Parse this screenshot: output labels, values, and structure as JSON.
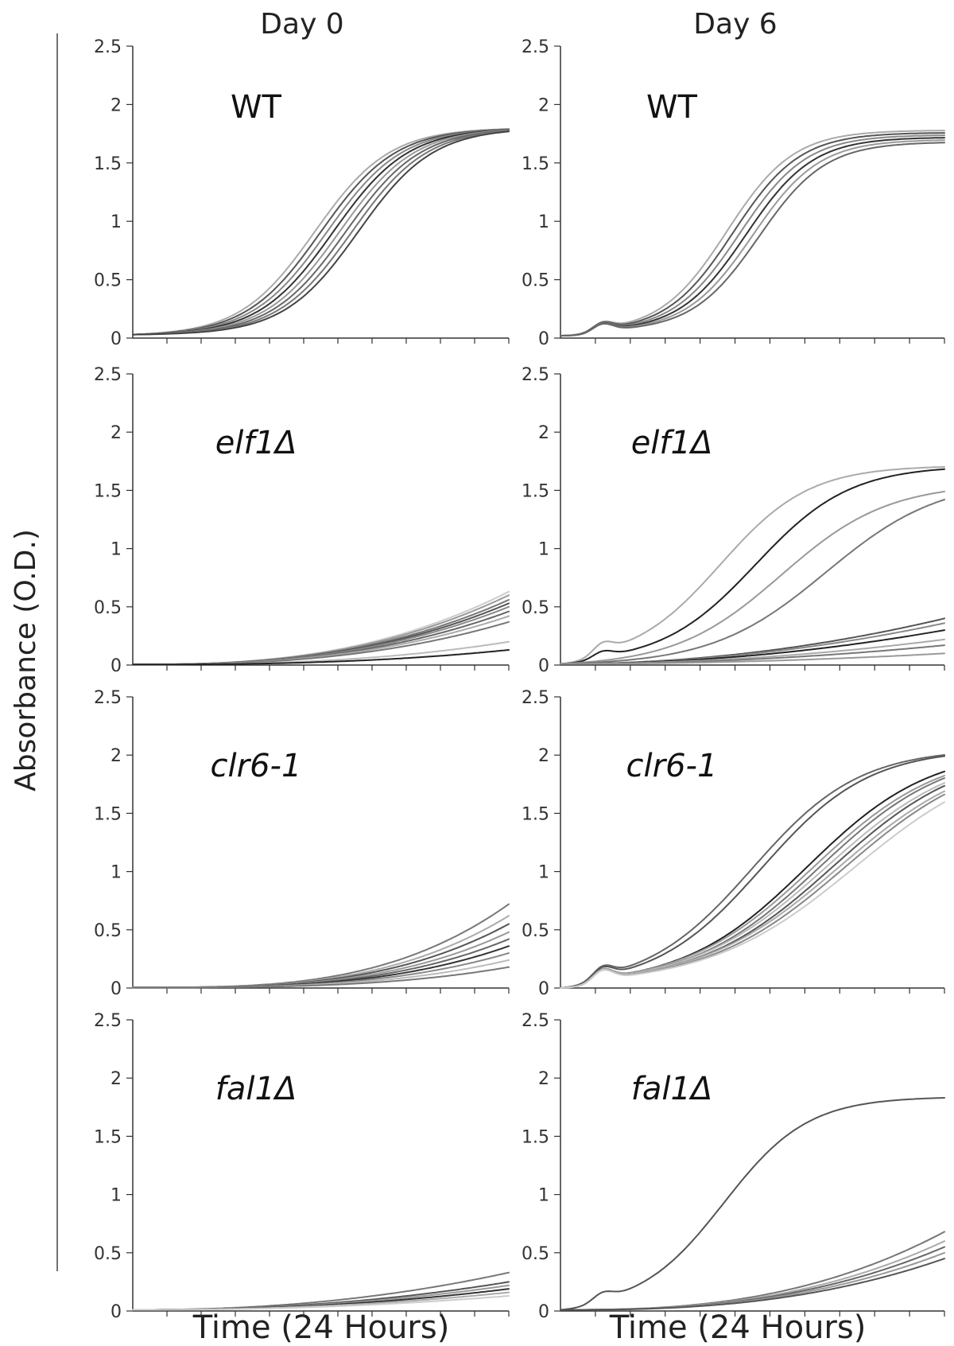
{
  "figure": {
    "column_titles": [
      "Day 0",
      "Day 6"
    ],
    "ylabel": "Absorbance (O.D.)",
    "xlabel": "Time (24 Hours)"
  },
  "chart_data": [
    {
      "type": "line",
      "panel": "WT Day 0",
      "label": "WT",
      "italic": false,
      "row": 0,
      "col": 0,
      "ylim": [
        0,
        2.5
      ],
      "yticks": [
        "0",
        "0.5",
        "1",
        "1.5",
        "2",
        "2.5"
      ],
      "x_tick_count": 11,
      "x_range": [
        0,
        24
      ],
      "xlabel": "Time (24 Hours)",
      "series_style": "sigmoid",
      "baseline": 0.03,
      "series": [
        {
          "plateau": 1.8,
          "mid": 11.6,
          "k": 0.42,
          "color": "#aaaaaa"
        },
        {
          "plateau": 1.8,
          "mid": 12.0,
          "k": 0.42,
          "color": "#555555"
        },
        {
          "plateau": 1.8,
          "mid": 12.4,
          "k": 0.42,
          "color": "#888888"
        },
        {
          "plateau": 1.8,
          "mid": 12.8,
          "k": 0.42,
          "color": "#333333"
        },
        {
          "plateau": 1.8,
          "mid": 13.2,
          "k": 0.42,
          "color": "#999999"
        },
        {
          "plateau": 1.8,
          "mid": 13.6,
          "k": 0.42,
          "color": "#666666"
        },
        {
          "plateau": 1.8,
          "mid": 14.0,
          "k": 0.42,
          "color": "#777777"
        },
        {
          "plateau": 1.8,
          "mid": 14.4,
          "k": 0.42,
          "color": "#444444"
        }
      ]
    },
    {
      "type": "line",
      "panel": "WT Day 6",
      "label": "WT",
      "italic": false,
      "row": 0,
      "col": 1,
      "ylim": [
        0,
        2.5
      ],
      "yticks": [
        "0",
        "0.5",
        "1",
        "1.5",
        "2",
        "2.5"
      ],
      "x_tick_count": 11,
      "x_range": [
        0,
        24
      ],
      "xlabel": "Time (24 Hours)",
      "series_style": "sigmoid",
      "baseline": 0.02,
      "bump": 0.1,
      "series": [
        {
          "plateau": 1.74,
          "mid": 10.4,
          "k": 0.48,
          "color": "#aaaaaa"
        },
        {
          "plateau": 1.72,
          "mid": 10.8,
          "k": 0.48,
          "color": "#555555"
        },
        {
          "plateau": 1.7,
          "mid": 11.2,
          "k": 0.48,
          "color": "#888888"
        },
        {
          "plateau": 1.68,
          "mid": 11.6,
          "k": 0.48,
          "color": "#333333"
        },
        {
          "plateau": 1.66,
          "mid": 12.0,
          "k": 0.48,
          "color": "#999999"
        },
        {
          "plateau": 1.64,
          "mid": 12.4,
          "k": 0.48,
          "color": "#666666"
        }
      ]
    },
    {
      "type": "line",
      "panel": "elf1Δ Day 0",
      "label": "elf1Δ",
      "italic": true,
      "row": 1,
      "col": 0,
      "ylim": [
        0,
        2.5
      ],
      "yticks": [
        "0",
        "0.5",
        "1",
        "1.5",
        "2",
        "2.5"
      ],
      "x_tick_count": 11,
      "x_range": [
        0,
        24
      ],
      "xlabel": "Time (24 Hours)",
      "series_style": "power",
      "exponent": 2.6,
      "series": [
        {
          "end": 0.63,
          "color": "#cccccc"
        },
        {
          "end": 0.6,
          "color": "#999999"
        },
        {
          "end": 0.56,
          "color": "#777777"
        },
        {
          "end": 0.53,
          "color": "#555555"
        },
        {
          "end": 0.5,
          "color": "#888888"
        },
        {
          "end": 0.46,
          "color": "#666666"
        },
        {
          "end": 0.42,
          "color": "#aaaaaa"
        },
        {
          "end": 0.37,
          "color": "#777777"
        },
        {
          "end": 0.2,
          "color": "#bbbbbb"
        },
        {
          "end": 0.13,
          "color": "#222222"
        }
      ]
    },
    {
      "type": "line",
      "panel": "elf1Δ Day 6",
      "label": "elf1Δ",
      "italic": true,
      "row": 1,
      "col": 1,
      "ylim": [
        0,
        2.5
      ],
      "yticks": [
        "0",
        "0.5",
        "1",
        "1.5",
        "2",
        "2.5"
      ],
      "x_tick_count": 11,
      "x_range": [
        0,
        24
      ],
      "xlabel": "Time (24 Hours)",
      "series_style": "mixed",
      "baseline": 0.01,
      "series": [
        {
          "kind": "sigmoid",
          "plateau": 1.66,
          "mid": 10.0,
          "k": 0.36,
          "bump": 0.13,
          "color": "#aaaaaa"
        },
        {
          "kind": "sigmoid",
          "plateau": 1.68,
          "mid": 12.2,
          "k": 0.34,
          "bump": 0.08,
          "color": "#222222"
        },
        {
          "kind": "sigmoid",
          "plateau": 1.56,
          "mid": 13.8,
          "k": 0.3,
          "color": "#999999"
        },
        {
          "kind": "sigmoid",
          "plateau": 1.6,
          "mid": 16.6,
          "k": 0.28,
          "color": "#777777"
        },
        {
          "kind": "power",
          "end": 0.4,
          "exponent": 2.0,
          "color": "#555555"
        },
        {
          "kind": "power",
          "end": 0.36,
          "exponent": 2.0,
          "color": "#888888"
        },
        {
          "kind": "power",
          "end": 0.3,
          "exponent": 2.0,
          "color": "#222222"
        },
        {
          "kind": "power",
          "end": 0.22,
          "exponent": 2.0,
          "color": "#aaaaaa"
        },
        {
          "kind": "power",
          "end": 0.17,
          "exponent": 2.0,
          "color": "#777777"
        },
        {
          "kind": "power",
          "end": 0.1,
          "exponent": 2.0,
          "color": "#999999"
        }
      ]
    },
    {
      "type": "line",
      "panel": "clr6-1 Day 0",
      "label": "clr6-1",
      "italic": true,
      "row": 2,
      "col": 0,
      "ylim": [
        0,
        2.5
      ],
      "yticks": [
        "0",
        "0.5",
        "1",
        "1.5",
        "2",
        "2.5"
      ],
      "x_tick_count": 11,
      "x_range": [
        0,
        24
      ],
      "xlabel": "Time (24 Hours)",
      "series_style": "power",
      "exponent": 3.2,
      "series": [
        {
          "end": 0.72,
          "color": "#777777"
        },
        {
          "end": 0.62,
          "color": "#aaaaaa"
        },
        {
          "end": 0.55,
          "color": "#555555"
        },
        {
          "end": 0.48,
          "color": "#999999"
        },
        {
          "end": 0.42,
          "color": "#666666"
        },
        {
          "end": 0.36,
          "color": "#333333"
        },
        {
          "end": 0.3,
          "color": "#888888"
        },
        {
          "end": 0.24,
          "color": "#bbbbbb"
        },
        {
          "end": 0.18,
          "color": "#777777"
        }
      ]
    },
    {
      "type": "line",
      "panel": "clr6-1 Day 6",
      "label": "clr6-1",
      "italic": true,
      "row": 2,
      "col": 1,
      "ylim": [
        0,
        2.5
      ],
      "yticks": [
        "0",
        "0.5",
        "1",
        "1.5",
        "2",
        "2.5"
      ],
      "x_tick_count": 11,
      "x_range": [
        0,
        24
      ],
      "xlabel": "Time (24 Hours)",
      "series_style": "sigmoid",
      "baseline": 0.0,
      "bump": 0.14,
      "series": [
        {
          "plateau": 2.0,
          "mid": 12.0,
          "k": 0.3,
          "color": "#666666"
        },
        {
          "plateau": 2.0,
          "mid": 12.6,
          "k": 0.3,
          "color": "#555555"
        },
        {
          "plateau": 2.0,
          "mid": 15.4,
          "k": 0.26,
          "color": "#222222"
        },
        {
          "plateau": 2.0,
          "mid": 15.8,
          "k": 0.25,
          "color": "#999999"
        },
        {
          "plateau": 2.0,
          "mid": 16.2,
          "k": 0.25,
          "color": "#777777"
        },
        {
          "plateau": 2.0,
          "mid": 16.6,
          "k": 0.24,
          "color": "#bbbbbb"
        },
        {
          "plateau": 2.0,
          "mid": 17.0,
          "k": 0.24,
          "color": "#555555"
        },
        {
          "plateau": 2.0,
          "mid": 17.4,
          "k": 0.23,
          "color": "#aaaaaa"
        },
        {
          "plateau": 2.0,
          "mid": 17.8,
          "k": 0.23,
          "color": "#888888"
        },
        {
          "plateau": 2.0,
          "mid": 18.4,
          "k": 0.22,
          "color": "#cccccc"
        }
      ]
    },
    {
      "type": "line",
      "panel": "fal1Δ Day 0",
      "label": "fal1Δ",
      "italic": true,
      "row": 3,
      "col": 0,
      "ylim": [
        0,
        2.5
      ],
      "yticks": [
        "0",
        "0.5",
        "1",
        "1.5",
        "2",
        "2.5"
      ],
      "x_tick_count": 11,
      "x_range": [
        0,
        24
      ],
      "xlabel": "Time (24 Hours)",
      "series_style": "power",
      "exponent": 2.2,
      "baseline": 0.01,
      "series": [
        {
          "end": 0.33,
          "color": "#777777"
        },
        {
          "end": 0.25,
          "color": "#555555"
        },
        {
          "end": 0.22,
          "color": "#999999"
        },
        {
          "end": 0.19,
          "color": "#333333"
        },
        {
          "end": 0.16,
          "color": "#aaaaaa"
        },
        {
          "end": 0.13,
          "color": "#cccccc"
        }
      ]
    },
    {
      "type": "line",
      "panel": "fal1Δ Day 6",
      "label": "fal1Δ",
      "italic": true,
      "row": 3,
      "col": 1,
      "ylim": [
        0,
        2.5
      ],
      "yticks": [
        "0",
        "0.5",
        "1",
        "1.5",
        "2",
        "2.5"
      ],
      "x_tick_count": 11,
      "x_range": [
        0,
        24
      ],
      "xlabel": "Time (24 Hours)",
      "series_style": "mixed",
      "baseline": 0.01,
      "series": [
        {
          "kind": "sigmoid",
          "plateau": 1.8,
          "mid": 10.2,
          "k": 0.38,
          "bump": 0.1,
          "color": "#555555"
        },
        {
          "kind": "power",
          "end": 0.68,
          "exponent": 2.6,
          "color": "#777777"
        },
        {
          "kind": "power",
          "end": 0.6,
          "exponent": 2.6,
          "color": "#aaaaaa"
        },
        {
          "kind": "power",
          "end": 0.55,
          "exponent": 2.6,
          "color": "#666666"
        },
        {
          "kind": "power",
          "end": 0.5,
          "exponent": 2.6,
          "color": "#999999"
        },
        {
          "kind": "power",
          "end": 0.45,
          "exponent": 2.6,
          "color": "#555555"
        }
      ]
    }
  ]
}
